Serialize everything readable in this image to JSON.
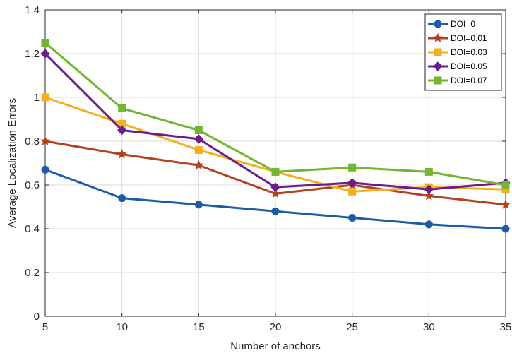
{
  "chart_data": {
    "type": "line",
    "title": "",
    "xlabel": "Number of anchors",
    "ylabel": "Average Localization Errors",
    "x": [
      5,
      10,
      15,
      20,
      25,
      30,
      35
    ],
    "xlim": [
      5,
      35
    ],
    "ylim": [
      0,
      1.4
    ],
    "xticks": [
      5,
      10,
      15,
      20,
      25,
      30,
      35
    ],
    "yticks": [
      0,
      0.2,
      0.4,
      0.6,
      0.8,
      1,
      1.2,
      1.4
    ],
    "grid": true,
    "legend_position": "top-right",
    "series": [
      {
        "name": "DOI=0",
        "color": "#1f5ca8",
        "marker": "circle",
        "values": [
          0.67,
          0.54,
          0.51,
          0.48,
          0.45,
          0.42,
          0.4
        ]
      },
      {
        "name": "DOI=0.01",
        "color": "#b5401f",
        "marker": "star",
        "values": [
          0.8,
          0.74,
          0.69,
          0.56,
          0.6,
          0.55,
          0.51
        ]
      },
      {
        "name": "DOI=0.03",
        "color": "#f2b01e",
        "marker": "square",
        "values": [
          1.0,
          0.88,
          0.76,
          0.66,
          0.57,
          0.59,
          0.58
        ]
      },
      {
        "name": "DOI=0.05",
        "color": "#6b1e8a",
        "marker": "diamond",
        "values": [
          1.2,
          0.85,
          0.81,
          0.59,
          0.61,
          0.58,
          0.61
        ]
      },
      {
        "name": "DOI=0.07",
        "color": "#73b52e",
        "marker": "square",
        "values": [
          1.25,
          0.95,
          0.85,
          0.66,
          0.68,
          0.66,
          0.6
        ]
      }
    ]
  }
}
